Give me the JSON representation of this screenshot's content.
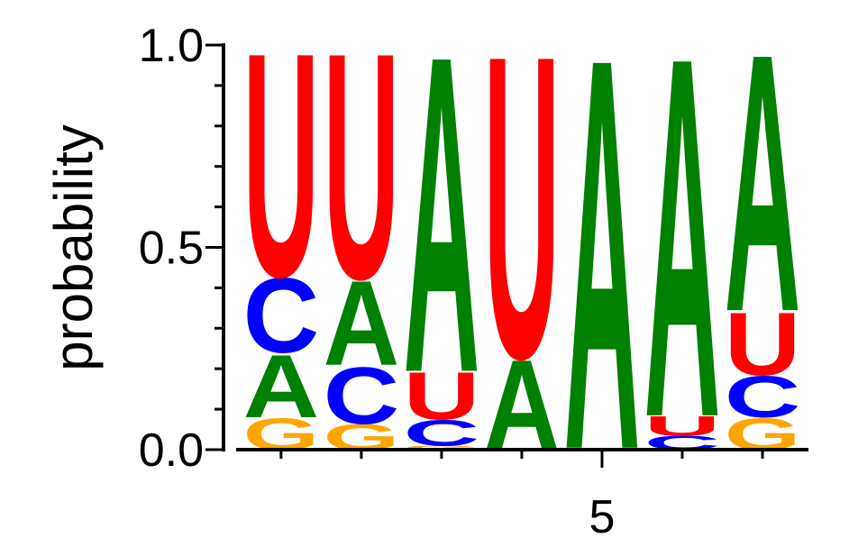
{
  "chart_data": {
    "type": "sequence-logo",
    "y_label": "probability",
    "x": [
      1,
      2,
      3,
      4,
      5,
      6,
      7
    ],
    "series": [
      {
        "name": "A",
        "color": "#008000",
        "values": [
          0.16,
          0.215,
          0.805,
          0.23,
          0.995,
          0.915,
          0.655
        ]
      },
      {
        "name": "C",
        "color": "#0000ff",
        "values": [
          0.19,
          0.145,
          0.065,
          0,
          0,
          0.035,
          0.105
        ]
      },
      {
        "name": "G",
        "color": "#ffa500",
        "values": [
          0.08,
          0.065,
          0.01,
          0,
          0.005,
          0,
          0.08
        ]
      },
      {
        "name": "U",
        "color": "#ff0000",
        "values": [
          0.57,
          0.575,
          0.12,
          0.77,
          0,
          0.05,
          0.16
        ]
      }
    ],
    "xlim": [
      0.44,
      7.55
    ],
    "xticks": [
      5
    ],
    "xminor_ticks": [
      1,
      2,
      3,
      4,
      6,
      7
    ],
    "ylim": [
      0,
      1
    ],
    "yticks": [
      {
        "value": 0,
        "label": "0.0"
      },
      {
        "value": 0.5,
        "label": "0.5"
      },
      {
        "value": 1,
        "label": "1.0"
      }
    ],
    "yminor_ticks": [
      0.1,
      0.2,
      0.3,
      0.4,
      0.6,
      0.7,
      0.8,
      0.9
    ]
  }
}
